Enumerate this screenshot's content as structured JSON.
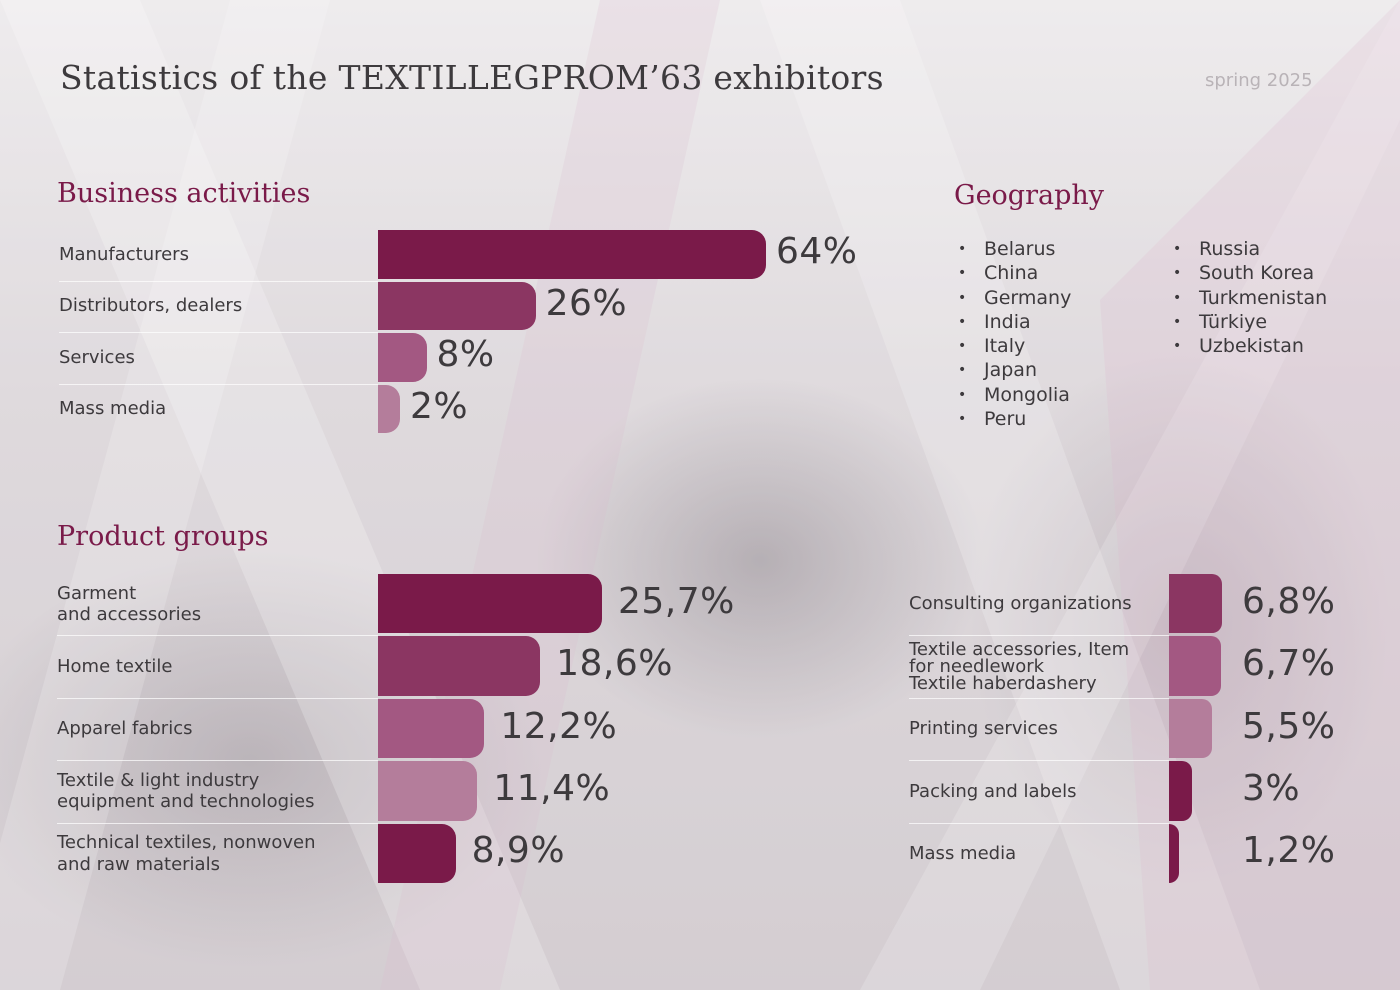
{
  "header": {
    "title": "Statistics of the TEXTILLEGPROM’63 exhibitors",
    "season": "spring 2025"
  },
  "colors": {
    "accent": "#7a1a49",
    "bar_shades": [
      "#7a1a49",
      "#8b3662",
      "#a35882",
      "#b47d9b"
    ]
  },
  "business": {
    "title": "Business activities"
  },
  "geography": {
    "title": "Geography",
    "col1": [
      "Belarus",
      "China",
      "Germany",
      "India",
      "Italy",
      "Japan",
      "Mongolia",
      "Peru"
    ],
    "col2": [
      "Russia",
      "South Korea",
      "Turkmenistan",
      "Türkiye",
      "Uzbekistan"
    ]
  },
  "products": {
    "title": "Product groups"
  },
  "chart_data": [
    {
      "type": "bar",
      "orientation": "horizontal",
      "title": "Business activities",
      "unit": "%",
      "categories": [
        "Manufacturers",
        "Distributors, dealers",
        "Services",
        "Mass media"
      ],
      "values": [
        64,
        26,
        8,
        2
      ],
      "value_labels": [
        "64%",
        "26%",
        "8%",
        "2%"
      ],
      "xlim": [
        0,
        64
      ]
    },
    {
      "type": "bar",
      "orientation": "horizontal",
      "title": "Product groups",
      "unit": "%",
      "categories": [
        "Garment\nand accessories",
        "Home textile",
        "Apparel fabrics",
        "Textile & light industry\nequipment and technologies",
        "Technical textiles, nonwoven\nand raw materials"
      ],
      "values": [
        25.7,
        18.6,
        12.2,
        11.4,
        8.9
      ],
      "value_labels": [
        "25,7%",
        "18,6%",
        "12,2%",
        "11,4%",
        "8,9%"
      ],
      "xlim": [
        0,
        25.7
      ]
    },
    {
      "type": "bar",
      "orientation": "horizontal",
      "unit": "%",
      "categories": [
        "Consulting organizations",
        "Textile accessories, Item\nfor needlework\nTextile haberdashery",
        "Printing services",
        "Packing and labels",
        "Mass media"
      ],
      "values": [
        6.8,
        6.7,
        5.5,
        3,
        1.2
      ],
      "value_labels": [
        "6,8%",
        "6,7%",
        "5,5%",
        "3%",
        "1,2%"
      ],
      "xlim": [
        0,
        6.8
      ]
    }
  ]
}
